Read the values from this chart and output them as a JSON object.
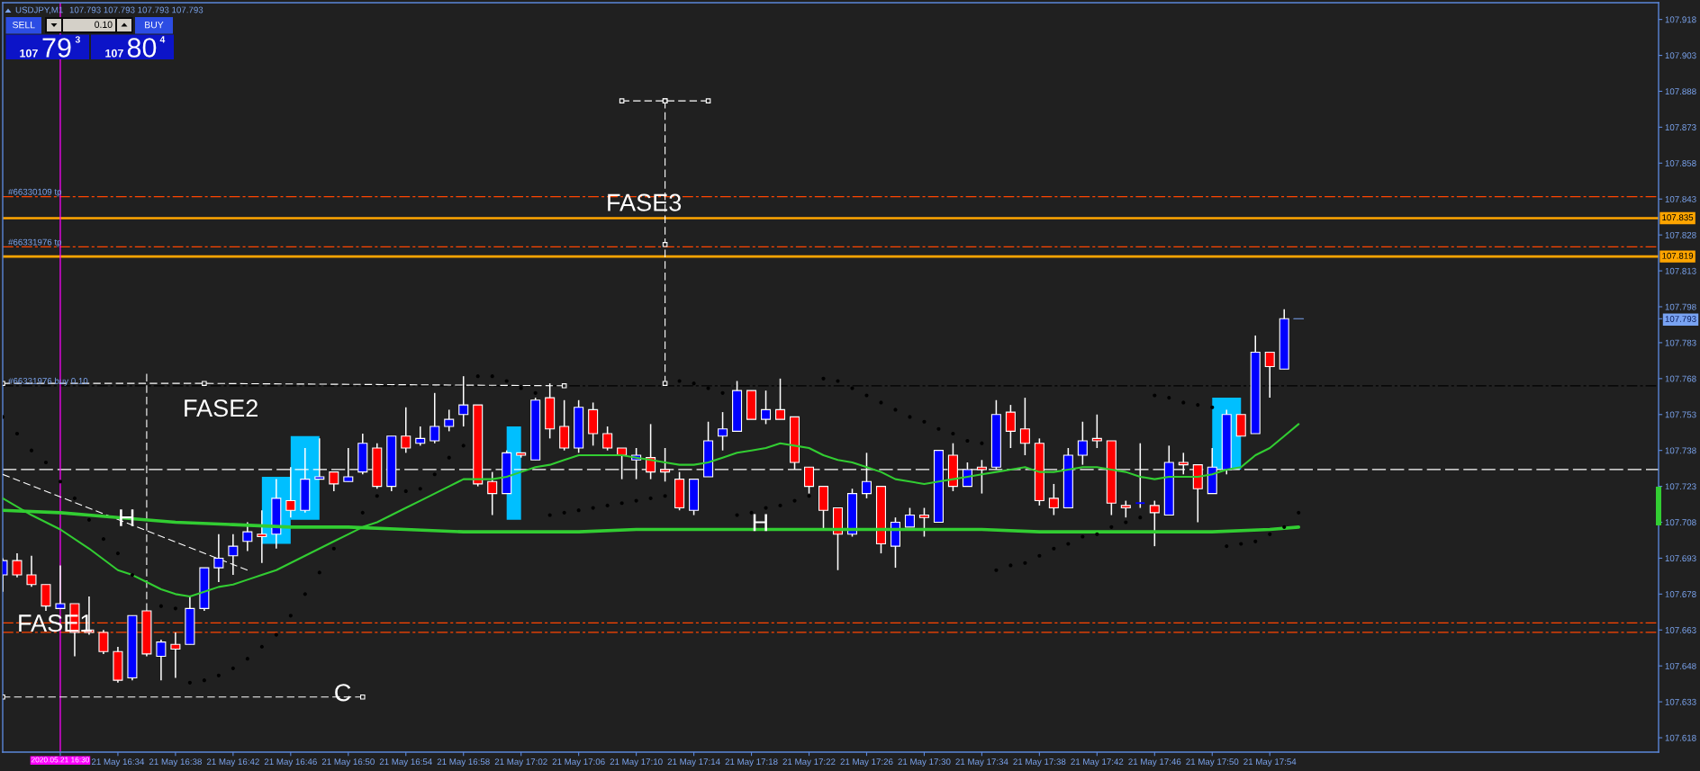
{
  "chart_data": {
    "type": "candlestick",
    "title": "USDJPY,M1",
    "subtitle": "107.793 107.793 107.793 107.793",
    "x": [
      "2020-05-21T16:26",
      "2020-05-21T16:27",
      "2020-05-21T16:28",
      "2020-05-21T16:29",
      "2020-05-21T16:30",
      "2020-05-21T16:31",
      "2020-05-21T16:32",
      "2020-05-21T16:33",
      "2020-05-21T16:34",
      "2020-05-21T16:35",
      "2020-05-21T16:36",
      "2020-05-21T16:37",
      "2020-05-21T16:38",
      "2020-05-21T16:39",
      "2020-05-21T16:40",
      "2020-05-21T16:41",
      "2020-05-21T16:42",
      "2020-05-21T16:43",
      "2020-05-21T16:44",
      "2020-05-21T16:45",
      "2020-05-21T16:46",
      "2020-05-21T16:47",
      "2020-05-21T16:48",
      "2020-05-21T16:49",
      "2020-05-21T16:50",
      "2020-05-21T16:51",
      "2020-05-21T16:52",
      "2020-05-21T16:53",
      "2020-05-21T16:54",
      "2020-05-21T16:55",
      "2020-05-21T16:56",
      "2020-05-21T16:57",
      "2020-05-21T16:58",
      "2020-05-21T16:59",
      "2020-05-21T17:00",
      "2020-05-21T17:01",
      "2020-05-21T17:02",
      "2020-05-21T17:03",
      "2020-05-21T17:04",
      "2020-05-21T17:05",
      "2020-05-21T17:06",
      "2020-05-21T17:07",
      "2020-05-21T17:08",
      "2020-05-21T17:09",
      "2020-05-21T17:10",
      "2020-05-21T17:11",
      "2020-05-21T17:12",
      "2020-05-21T17:13",
      "2020-05-21T17:14",
      "2020-05-21T17:15",
      "2020-05-21T17:16",
      "2020-05-21T17:17",
      "2020-05-21T17:18",
      "2020-05-21T17:19",
      "2020-05-21T17:20",
      "2020-05-21T17:21",
      "2020-05-21T17:22",
      "2020-05-21T17:23",
      "2020-05-21T17:24",
      "2020-05-21T17:25",
      "2020-05-21T17:26",
      "2020-05-21T17:27",
      "2020-05-21T17:28",
      "2020-05-21T17:29",
      "2020-05-21T17:30",
      "2020-05-21T17:31",
      "2020-05-21T17:32",
      "2020-05-21T17:33",
      "2020-05-21T17:34",
      "2020-05-21T17:35",
      "2020-05-21T17:36",
      "2020-05-21T17:37",
      "2020-05-21T17:38",
      "2020-05-21T17:39",
      "2020-05-21T17:40",
      "2020-05-21T17:41",
      "2020-05-21T17:42",
      "2020-05-21T17:43",
      "2020-05-21T17:44",
      "2020-05-21T17:45",
      "2020-05-21T17:46",
      "2020-05-21T17:47",
      "2020-05-21T17:48",
      "2020-05-21T17:49",
      "2020-05-21T17:50",
      "2020-05-21T17:51",
      "2020-05-21T17:52",
      "2020-05-21T17:53",
      "2020-05-21T17:54",
      "2020-05-21T17:55"
    ],
    "ohlc": [
      [
        107.686,
        107.693,
        107.679,
        107.692
      ],
      [
        107.692,
        107.695,
        107.685,
        107.686
      ],
      [
        107.686,
        107.694,
        107.681,
        107.682
      ],
      [
        107.682,
        107.682,
        107.671,
        107.673
      ],
      [
        107.672,
        107.69,
        107.672,
        107.674
      ],
      [
        107.674,
        107.674,
        107.652,
        107.662
      ],
      [
        107.663,
        107.677,
        107.661,
        107.662
      ],
      [
        107.662,
        107.663,
        107.653,
        107.654
      ],
      [
        107.654,
        107.656,
        107.641,
        107.642
      ],
      [
        107.643,
        107.669,
        107.642,
        107.669
      ],
      [
        107.671,
        107.671,
        107.652,
        107.653
      ],
      [
        107.652,
        107.659,
        107.642,
        107.658
      ],
      [
        107.657,
        107.662,
        107.643,
        107.655
      ],
      [
        107.657,
        107.677,
        107.657,
        107.672
      ],
      [
        107.672,
        107.689,
        107.671,
        107.689
      ],
      [
        107.689,
        107.703,
        107.683,
        107.693
      ],
      [
        107.694,
        107.703,
        107.686,
        107.698
      ],
      [
        107.7,
        107.708,
        107.696,
        107.704
      ],
      [
        107.703,
        107.713,
        107.691,
        107.702
      ],
      [
        107.703,
        107.726,
        107.697,
        107.718
      ],
      [
        107.717,
        107.731,
        107.71,
        107.713
      ],
      [
        107.713,
        107.739,
        107.712,
        107.726
      ],
      [
        107.726,
        107.743,
        107.726,
        107.727
      ],
      [
        107.729,
        107.729,
        107.721,
        107.724
      ],
      [
        107.725,
        107.739,
        107.725,
        107.727
      ],
      [
        107.729,
        107.745,
        107.728,
        107.741
      ],
      [
        107.739,
        107.741,
        107.722,
        107.723
      ],
      [
        107.723,
        107.744,
        107.721,
        107.744
      ],
      [
        107.744,
        107.756,
        107.737,
        107.739
      ],
      [
        107.741,
        107.748,
        107.74,
        107.743
      ],
      [
        107.742,
        107.762,
        107.741,
        107.748
      ],
      [
        107.748,
        107.755,
        107.746,
        107.751
      ],
      [
        107.753,
        107.769,
        107.748,
        107.757
      ],
      [
        107.757,
        107.757,
        107.723,
        107.724
      ],
      [
        107.725,
        107.729,
        107.711,
        107.72
      ],
      [
        107.72,
        107.738,
        107.72,
        107.737
      ],
      [
        107.737,
        107.737,
        107.735,
        107.736
      ],
      [
        107.734,
        107.76,
        107.734,
        107.759
      ],
      [
        107.76,
        107.766,
        107.743,
        107.747
      ],
      [
        107.748,
        107.759,
        107.738,
        107.739
      ],
      [
        107.739,
        107.759,
        107.737,
        107.756
      ],
      [
        107.755,
        107.758,
        107.74,
        107.745
      ],
      [
        107.745,
        107.748,
        107.738,
        107.739
      ],
      [
        107.739,
        107.739,
        107.726,
        107.736
      ],
      [
        107.734,
        107.739,
        107.726,
        107.736
      ],
      [
        107.735,
        107.749,
        107.726,
        107.729
      ],
      [
        107.73,
        107.739,
        107.725,
        107.729
      ],
      [
        107.726,
        107.729,
        107.713,
        107.714
      ],
      [
        107.713,
        107.726,
        107.711,
        107.726
      ],
      [
        107.727,
        107.75,
        107.727,
        107.742
      ],
      [
        107.744,
        107.754,
        107.738,
        107.747
      ],
      [
        107.746,
        107.767,
        107.746,
        107.763
      ],
      [
        107.763,
        107.763,
        107.751,
        107.751
      ],
      [
        107.751,
        107.763,
        107.749,
        107.755
      ],
      [
        107.755,
        107.768,
        107.751,
        107.751
      ],
      [
        107.752,
        107.752,
        107.73,
        107.733
      ],
      [
        107.731,
        107.731,
        107.72,
        107.723
      ],
      [
        107.723,
        107.723,
        107.705,
        107.713
      ],
      [
        107.714,
        107.714,
        107.688,
        107.703
      ],
      [
        107.703,
        107.722,
        107.702,
        107.72
      ],
      [
        107.72,
        107.737,
        107.718,
        107.725
      ],
      [
        107.723,
        107.723,
        107.695,
        107.699
      ],
      [
        107.698,
        107.71,
        107.689,
        107.708
      ],
      [
        107.706,
        107.714,
        107.706,
        107.711
      ],
      [
        107.711,
        107.714,
        107.702,
        107.71
      ],
      [
        107.708,
        107.738,
        107.708,
        107.738
      ],
      [
        107.736,
        107.741,
        107.721,
        107.723
      ],
      [
        107.723,
        107.733,
        107.723,
        107.73
      ],
      [
        107.731,
        107.734,
        107.72,
        107.73
      ],
      [
        107.731,
        107.759,
        107.73,
        107.753
      ],
      [
        107.754,
        107.757,
        107.739,
        107.746
      ],
      [
        107.747,
        107.76,
        107.736,
        107.741
      ],
      [
        107.741,
        107.743,
        107.715,
        107.717
      ],
      [
        107.718,
        107.724,
        107.711,
        107.714
      ],
      [
        107.714,
        107.739,
        107.714,
        107.736
      ],
      [
        107.736,
        107.75,
        107.732,
        107.742
      ],
      [
        107.743,
        107.753,
        107.739,
        107.742
      ],
      [
        107.742,
        107.742,
        107.711,
        107.716
      ],
      [
        107.715,
        107.717,
        107.71,
        107.714
      ],
      [
        107.716,
        107.741,
        107.714,
        107.716
      ],
      [
        107.715,
        107.717,
        107.698,
        107.712
      ],
      [
        107.711,
        107.74,
        107.711,
        107.733
      ],
      [
        107.733,
        107.737,
        107.728,
        107.732
      ],
      [
        107.732,
        107.732,
        107.708,
        107.722
      ],
      [
        107.72,
        107.739,
        107.72,
        107.731
      ],
      [
        107.73,
        107.755,
        107.728,
        107.753
      ],
      [
        107.753,
        107.753,
        107.744,
        107.744
      ],
      [
        107.745,
        107.786,
        107.745,
        107.779
      ],
      [
        107.779,
        107.779,
        107.76,
        107.773
      ],
      [
        107.772,
        107.797,
        107.772,
        107.793
      ]
    ],
    "colors": [
      "#0000ff",
      "#ff0000",
      "#ff0000",
      "#ff0000",
      "#0000ff",
      "#ff0000",
      "#ff0000",
      "#ff0000",
      "#ff0000",
      "#0000ff",
      "#ff0000",
      "#0000ff",
      "#ff0000",
      "#0000ff",
      "#0000ff",
      "#0000ff",
      "#0000ff",
      "#0000ff",
      "#ff0000",
      "#0000ff",
      "#ff0000",
      "#0000ff",
      "#0000ff",
      "#ff0000",
      "#0000ff",
      "#0000ff",
      "#ff0000",
      "#0000ff",
      "#ff0000",
      "#0000ff",
      "#0000ff",
      "#0000ff",
      "#0000ff",
      "#ff0000",
      "#ff0000",
      "#0000ff",
      "#ff0000",
      "#0000ff",
      "#ff0000",
      "#ff0000",
      "#0000ff",
      "#ff0000",
      "#ff0000",
      "#ff0000",
      "#0000ff",
      "#ff0000",
      "#ff0000",
      "#ff0000",
      "#0000ff",
      "#0000ff",
      "#0000ff",
      "#0000ff",
      "#ff0000",
      "#0000ff",
      "#ff0000",
      "#ff0000",
      "#ff0000",
      "#ff0000",
      "#ff0000",
      "#0000ff",
      "#0000ff",
      "#ff0000",
      "#0000ff",
      "#0000ff",
      "#ff0000",
      "#0000ff",
      "#ff0000",
      "#0000ff",
      "#ff0000",
      "#0000ff",
      "#ff0000",
      "#ff0000",
      "#ff0000",
      "#ff0000",
      "#0000ff",
      "#0000ff",
      "#ff0000",
      "#ff0000",
      "#ff0000",
      "#0000ff",
      "#ff0000",
      "#0000ff",
      "#ff0000",
      "#ff0000",
      "#0000ff",
      "#0000ff",
      "#ff0000",
      "#0000ff",
      "#ff0000",
      "#0000ff"
    ],
    "series": [
      {
        "type": "line",
        "color": "#32cd32",
        "x": [
          "2020-05-21T16:26",
          "2020-05-21T16:28",
          "2020-05-21T16:30",
          "2020-05-21T16:32",
          "2020-05-21T16:34",
          "2020-05-21T16:35",
          "2020-05-21T16:36",
          "2020-05-21T16:37",
          "2020-05-21T16:38",
          "2020-05-21T16:39",
          "2020-05-21T16:40",
          "2020-05-21T16:41",
          "2020-05-21T16:42",
          "2020-05-21T16:43",
          "2020-05-21T16:44",
          "2020-05-21T16:45",
          "2020-05-21T16:46",
          "2020-05-21T16:47",
          "2020-05-21T16:48",
          "2020-05-21T16:49",
          "2020-05-21T16:50",
          "2020-05-21T16:51",
          "2020-05-21T16:52",
          "2020-05-21T16:53",
          "2020-05-21T16:54",
          "2020-05-21T16:55",
          "2020-05-21T16:56",
          "2020-05-21T16:57",
          "2020-05-21T16:58",
          "2020-05-21T16:59",
          "2020-05-21T17:00",
          "2020-05-21T17:01",
          "2020-05-21T17:02",
          "2020-05-21T17:03",
          "2020-05-21T17:04",
          "2020-05-21T17:05",
          "2020-05-21T17:06",
          "2020-05-21T17:07",
          "2020-05-21T17:08",
          "2020-05-21T17:09",
          "2020-05-21T17:10",
          "2020-05-21T17:11",
          "2020-05-21T17:12",
          "2020-05-21T17:13",
          "2020-05-21T17:14",
          "2020-05-21T17:15",
          "2020-05-21T17:16",
          "2020-05-21T17:17",
          "2020-05-21T17:18",
          "2020-05-21T17:19",
          "2020-05-21T17:20",
          "2020-05-21T17:21",
          "2020-05-21T17:22",
          "2020-05-21T17:23",
          "2020-05-21T17:24",
          "2020-05-21T17:25",
          "2020-05-21T17:26",
          "2020-05-21T17:27",
          "2020-05-21T17:28",
          "2020-05-21T17:29",
          "2020-05-21T17:30",
          "2020-05-21T17:31",
          "2020-05-21T17:32",
          "2020-05-21T17:33",
          "2020-05-21T17:34",
          "2020-05-21T17:35",
          "2020-05-21T17:36",
          "2020-05-21T17:37",
          "2020-05-21T17:38",
          "2020-05-21T17:39",
          "2020-05-21T17:40",
          "2020-05-21T17:41",
          "2020-05-21T17:42",
          "2020-05-21T17:43",
          "2020-05-21T17:44",
          "2020-05-21T17:45",
          "2020-05-21T17:46",
          "2020-05-21T17:47",
          "2020-05-21T17:48",
          "2020-05-21T17:49",
          "2020-05-21T17:50",
          "2020-05-21T17:51",
          "2020-05-21T17:52",
          "2020-05-21T17:53",
          "2020-05-21T17:54",
          "2020-05-21T17:55",
          "2020-05-21T17:56"
        ],
        "values": [
          107.718,
          107.711,
          107.705,
          107.697,
          107.688,
          107.686,
          107.683,
          107.68,
          107.678,
          107.677,
          107.679,
          107.681,
          107.682,
          107.684,
          107.686,
          107.688,
          107.691,
          107.694,
          107.697,
          107.7,
          107.703,
          107.706,
          107.708,
          107.711,
          107.714,
          107.717,
          107.72,
          107.723,
          107.726,
          107.726,
          107.726,
          107.727,
          107.729,
          107.731,
          107.732,
          107.734,
          107.736,
          107.736,
          107.736,
          107.736,
          107.735,
          107.734,
          107.733,
          107.732,
          107.732,
          107.733,
          107.735,
          107.737,
          107.738,
          107.739,
          107.741,
          107.74,
          107.739,
          107.736,
          107.734,
          107.733,
          107.731,
          107.729,
          107.726,
          107.725,
          107.724,
          107.725,
          107.726,
          107.727,
          107.728,
          107.729,
          107.73,
          107.731,
          107.729,
          107.729,
          107.73,
          107.731,
          107.731,
          107.73,
          107.729,
          107.727,
          107.726,
          107.727,
          107.727,
          107.727,
          107.728,
          107.73,
          107.731,
          107.736,
          107.739,
          107.744,
          107.749
        ]
      },
      {
        "type": "line",
        "color": "#32cd32",
        "x": [
          "2020-05-21T16:26",
          "2020-05-21T16:30",
          "2020-05-21T16:34",
          "2020-05-21T16:38",
          "2020-05-21T16:42",
          "2020-05-21T16:46",
          "2020-05-21T16:50",
          "2020-05-21T16:54",
          "2020-05-21T16:58",
          "2020-05-21T17:02",
          "2020-05-21T17:06",
          "2020-05-21T17:10",
          "2020-05-21T17:14",
          "2020-05-21T17:18",
          "2020-05-21T17:22",
          "2020-05-21T17:26",
          "2020-05-21T17:30",
          "2020-05-21T17:34",
          "2020-05-21T17:38",
          "2020-05-21T17:42",
          "2020-05-21T17:46",
          "2020-05-21T17:50",
          "2020-05-21T17:54",
          "2020-05-21T17:56"
        ],
        "values": [
          107.713,
          107.712,
          107.71,
          107.708,
          107.707,
          107.706,
          107.706,
          107.705,
          107.704,
          107.704,
          107.704,
          107.705,
          107.705,
          107.705,
          107.705,
          107.705,
          107.705,
          107.705,
          107.704,
          107.704,
          107.704,
          107.704,
          107.705,
          107.706
        ]
      },
      {
        "type": "scatter",
        "color": "#000000",
        "marker": "circle",
        "x": [
          "2020-05-21T16:26",
          "2020-05-21T16:27",
          "2020-05-21T16:28",
          "2020-05-21T16:29",
          "2020-05-21T16:30",
          "2020-05-21T16:31",
          "2020-05-21T16:32",
          "2020-05-21T16:33",
          "2020-05-21T16:34",
          "2020-05-21T16:35",
          "2020-05-21T16:37",
          "2020-05-21T16:38",
          "2020-05-21T16:39",
          "2020-05-21T16:40",
          "2020-05-21T16:41",
          "2020-05-21T16:42",
          "2020-05-21T16:43",
          "2020-05-21T16:44",
          "2020-05-21T16:45",
          "2020-05-21T16:46",
          "2020-05-21T16:47",
          "2020-05-21T16:48",
          "2020-05-21T16:49",
          "2020-05-21T16:51",
          "2020-05-21T16:52",
          "2020-05-21T16:54",
          "2020-05-21T16:55",
          "2020-05-21T16:56",
          "2020-05-21T16:57",
          "2020-05-21T16:58",
          "2020-05-21T16:59",
          "2020-05-21T17:00",
          "2020-05-21T17:01",
          "2020-05-21T17:02",
          "2020-05-21T17:03",
          "2020-05-21T17:04",
          "2020-05-21T17:05",
          "2020-05-21T17:06",
          "2020-05-21T17:07",
          "2020-05-21T17:08",
          "2020-05-21T17:09",
          "2020-05-21T17:10",
          "2020-05-21T17:11",
          "2020-05-21T17:12",
          "2020-05-21T17:13",
          "2020-05-21T17:14",
          "2020-05-21T17:15",
          "2020-05-21T17:16",
          "2020-05-21T17:17",
          "2020-05-21T17:18",
          "2020-05-21T17:19",
          "2020-05-21T17:20",
          "2020-05-21T17:21",
          "2020-05-21T17:22",
          "2020-05-21T17:23",
          "2020-05-21T17:24",
          "2020-05-21T17:25",
          "2020-05-21T17:26",
          "2020-05-21T17:27",
          "2020-05-21T17:28",
          "2020-05-21T17:29",
          "2020-05-21T17:30",
          "2020-05-21T17:31",
          "2020-05-21T17:32",
          "2020-05-21T17:33",
          "2020-05-21T17:34",
          "2020-05-21T17:35",
          "2020-05-21T17:36",
          "2020-05-21T17:37",
          "2020-05-21T17:38",
          "2020-05-21T17:39",
          "2020-05-21T17:40",
          "2020-05-21T17:41",
          "2020-05-21T17:42",
          "2020-05-21T17:43",
          "2020-05-21T17:44",
          "2020-05-21T17:45",
          "2020-05-21T17:46",
          "2020-05-21T17:47",
          "2020-05-21T17:48",
          "2020-05-21T17:49",
          "2020-05-21T17:50",
          "2020-05-21T17:51",
          "2020-05-21T17:52",
          "2020-05-21T17:53",
          "2020-05-21T17:54",
          "2020-05-21T17:55",
          "2020-05-21T17:56"
        ],
        "values": [
          107.752,
          107.745,
          107.738,
          107.733,
          107.725,
          107.718,
          107.709,
          107.701,
          107.695,
          107.686,
          107.673,
          107.672,
          107.641,
          107.642,
          107.644,
          107.647,
          107.651,
          107.656,
          107.661,
          107.669,
          107.678,
          107.687,
          107.697,
          107.712,
          107.719,
          107.721,
          107.722,
          107.728,
          107.735,
          107.74,
          107.769,
          107.769,
          107.767,
          107.764,
          107.762,
          107.711,
          107.712,
          107.713,
          107.714,
          107.715,
          107.716,
          107.717,
          107.718,
          107.719,
          107.767,
          107.766,
          107.764,
          107.762,
          107.711,
          107.712,
          107.714,
          107.715,
          107.717,
          107.719,
          107.768,
          107.767,
          107.764,
          107.761,
          107.758,
          107.755,
          107.752,
          107.75,
          107.747,
          107.745,
          107.742,
          107.741,
          107.688,
          107.69,
          107.691,
          107.694,
          107.697,
          107.699,
          107.702,
          107.703,
          107.706,
          107.708,
          107.71,
          107.761,
          107.76,
          107.758,
          107.757,
          107.756,
          107.698,
          107.699,
          107.7,
          107.703,
          107.706,
          107.712
        ]
      },
      {
        "type": "line",
        "color": "#00bfff",
        "x": [
          "2020-05-21T16:44",
          "2020-05-21T16:46"
        ],
        "values": [
          null,
          null
        ],
        "lower": [
          107.699,
          107.699
        ],
        "upper": [
          107.727,
          107.727
        ]
      },
      {
        "type": "line",
        "color": "#00bfff",
        "x": [
          "2020-05-21T16:46",
          "2020-05-21T16:48"
        ],
        "values": [
          null,
          null
        ],
        "lower": [
          107.709,
          107.709
        ],
        "upper": [
          107.744,
          107.744
        ]
      },
      {
        "type": "line",
        "color": "#00bfff",
        "x": [
          "2020-05-21T17:01",
          "2020-05-21T17:02"
        ],
        "values": [
          null,
          null
        ],
        "lower": [
          107.709,
          107.709
        ],
        "upper": [
          107.748,
          107.748
        ]
      },
      {
        "type": "line",
        "color": "#00bfff",
        "x": [
          "2020-05-21T17:50",
          "2020-05-21T17:52"
        ],
        "values": [
          null,
          null
        ],
        "lower": [
          107.73,
          107.73
        ],
        "upper": [
          107.76,
          107.76
        ]
      },
      {
        "type": "line",
        "color": "#ffffff",
        "line_style": "dashed",
        "marker": "square",
        "x": [
          "2020-05-21T16:26",
          "2020-05-21T16:40",
          "2020-05-21T17:05"
        ],
        "values": [
          107.766,
          107.766,
          107.765
        ]
      },
      {
        "type": "line",
        "color": "#ffffff",
        "line_style": "dashed",
        "x": [
          "2020-05-21T16:36",
          "2020-05-21T16:36"
        ],
        "values": [
          107.77,
          107.671
        ]
      },
      {
        "type": "line",
        "color": "#ffffff",
        "line_style": "dashed",
        "x": [
          "2020-05-21T16:26",
          "2020-05-21T16:43"
        ],
        "values": [
          107.728,
          107.688
        ]
      },
      {
        "type": "line",
        "color": "#ffffff",
        "line_style": "dashed",
        "marker": "square",
        "x": [
          "2020-05-21T16:26",
          "2020-05-21T16:51"
        ],
        "values": [
          107.635,
          107.635
        ]
      },
      {
        "type": "line",
        "color": "#ffffff",
        "line_style": "dashed",
        "marker": "square",
        "x": [
          "2020-05-21T17:09",
          "2020-05-21T17:12",
          "2020-05-21T17:15"
        ],
        "values": [
          107.884,
          107.884,
          107.884
        ]
      },
      {
        "type": "line",
        "color": "#ffffff",
        "line_style": "dashed",
        "marker": "square",
        "x": [
          "2020-05-21T17:12",
          "2020-05-21T17:12",
          "2020-05-21T17:12"
        ],
        "values": [
          107.884,
          107.824,
          107.766
        ]
      },
      {
        "type": "line",
        "color": "#79a3f2",
        "x": [
          "2020-05-21T17:55:40",
          "2020-05-21T17:56:20"
        ],
        "values": [
          107.793,
          107.793
        ]
      }
    ],
    "xlim": [
      "2020-05-21T16:26",
      "2020-05-21T18:21"
    ],
    "xticks": [
      {
        "value": "2020-05-21T16:30",
        "label": null
      },
      {
        "value": "2020-05-21T16:34",
        "label": "21 May 16:34"
      },
      {
        "value": "2020-05-21T16:38",
        "label": "21 May 16:38"
      },
      {
        "value": "2020-05-21T16:42",
        "label": "21 May 16:42"
      },
      {
        "value": "2020-05-21T16:46",
        "label": "21 May 16:46"
      },
      {
        "value": "2020-05-21T16:50",
        "label": "21 May 16:50"
      },
      {
        "value": "2020-05-21T16:54",
        "label": "21 May 16:54"
      },
      {
        "value": "2020-05-21T16:58",
        "label": "21 May 16:58"
      },
      {
        "value": "2020-05-21T17:02",
        "label": "21 May 17:02"
      },
      {
        "value": "2020-05-21T17:06",
        "label": "21 May 17:06"
      },
      {
        "value": "2020-05-21T17:10",
        "label": "21 May 17:10"
      },
      {
        "value": "2020-05-21T17:14",
        "label": "21 May 17:14"
      },
      {
        "value": "2020-05-21T17:18",
        "label": "21 May 17:18"
      },
      {
        "value": "2020-05-21T17:22",
        "label": "21 May 17:22"
      },
      {
        "value": "2020-05-21T17:26",
        "label": "21 May 17:26"
      },
      {
        "value": "2020-05-21T17:30",
        "label": "21 May 17:30"
      },
      {
        "value": "2020-05-21T17:34",
        "label": "21 May 17:34"
      },
      {
        "value": "2020-05-21T17:38",
        "label": "21 May 17:38"
      },
      {
        "value": "2020-05-21T17:42",
        "label": "21 May 17:42"
      },
      {
        "value": "2020-05-21T17:46",
        "label": "21 May 17:46"
      },
      {
        "value": "2020-05-21T17:50",
        "label": "21 May 17:50"
      },
      {
        "value": "2020-05-21T17:54",
        "label": "21 May 17:54"
      }
    ],
    "ylim": [
      107.612,
      107.925
    ],
    "yticks": [
      107.618,
      107.633,
      107.648,
      107.663,
      107.678,
      107.693,
      107.708,
      107.723,
      107.738,
      107.753,
      107.768,
      107.783,
      107.793,
      107.798,
      107.813,
      107.828,
      107.843,
      107.858,
      107.873,
      107.888,
      107.903,
      107.918
    ],
    "ref_lines": [
      {
        "axis": "y",
        "value": 107.844,
        "label": "#66330109 tp",
        "color": "#ff4500",
        "line_style": "dashdot"
      },
      {
        "axis": "y",
        "value": 107.835,
        "label": "107.835",
        "color": "#ffa500",
        "line_style": "solid"
      },
      {
        "axis": "y",
        "value": 107.823,
        "label": "#66331976 tp",
        "color": "#ff4500",
        "line_style": "dashdot"
      },
      {
        "axis": "y",
        "value": 107.819,
        "label": "107.819",
        "color": "#ffa500",
        "line_style": "solid"
      },
      {
        "axis": "y",
        "value": 107.765,
        "label": "#66331976 buy 0.10",
        "color": "#000000",
        "line_style": "dashdot"
      },
      {
        "axis": "y",
        "value": 107.73,
        "color": "#ffffff",
        "line_style": "dashed"
      },
      {
        "axis": "y",
        "value": 107.666,
        "color": "#ff4500",
        "line_style": "dashdot"
      },
      {
        "axis": "y",
        "value": 107.662,
        "color": "#ff4500",
        "line_style": "dashdot"
      },
      {
        "axis": "x",
        "value": "2020-05-21T16:30",
        "label": "2020.05.21 16:30",
        "color": "#ff00ff",
        "line_style": "solid"
      }
    ],
    "annotations": [
      "FASE3",
      "FASE2",
      {
        "text": "FASE1",
        "x": "2020-05-21T16:27",
        "y": 107.665
      },
      {
        "text": "H",
        "x": "2020-05-21T16:34",
        "y": 107.709
      },
      {
        "text": "H",
        "x": "2020-05-21T17:18",
        "y": 107.707
      },
      {
        "text": "C",
        "x": "2020-05-21T16:49",
        "y": 107.636
      },
      "SELL",
      "0.10",
      "BUY",
      "107",
      "79",
      "3",
      "107",
      "80",
      "4"
    ]
  }
}
